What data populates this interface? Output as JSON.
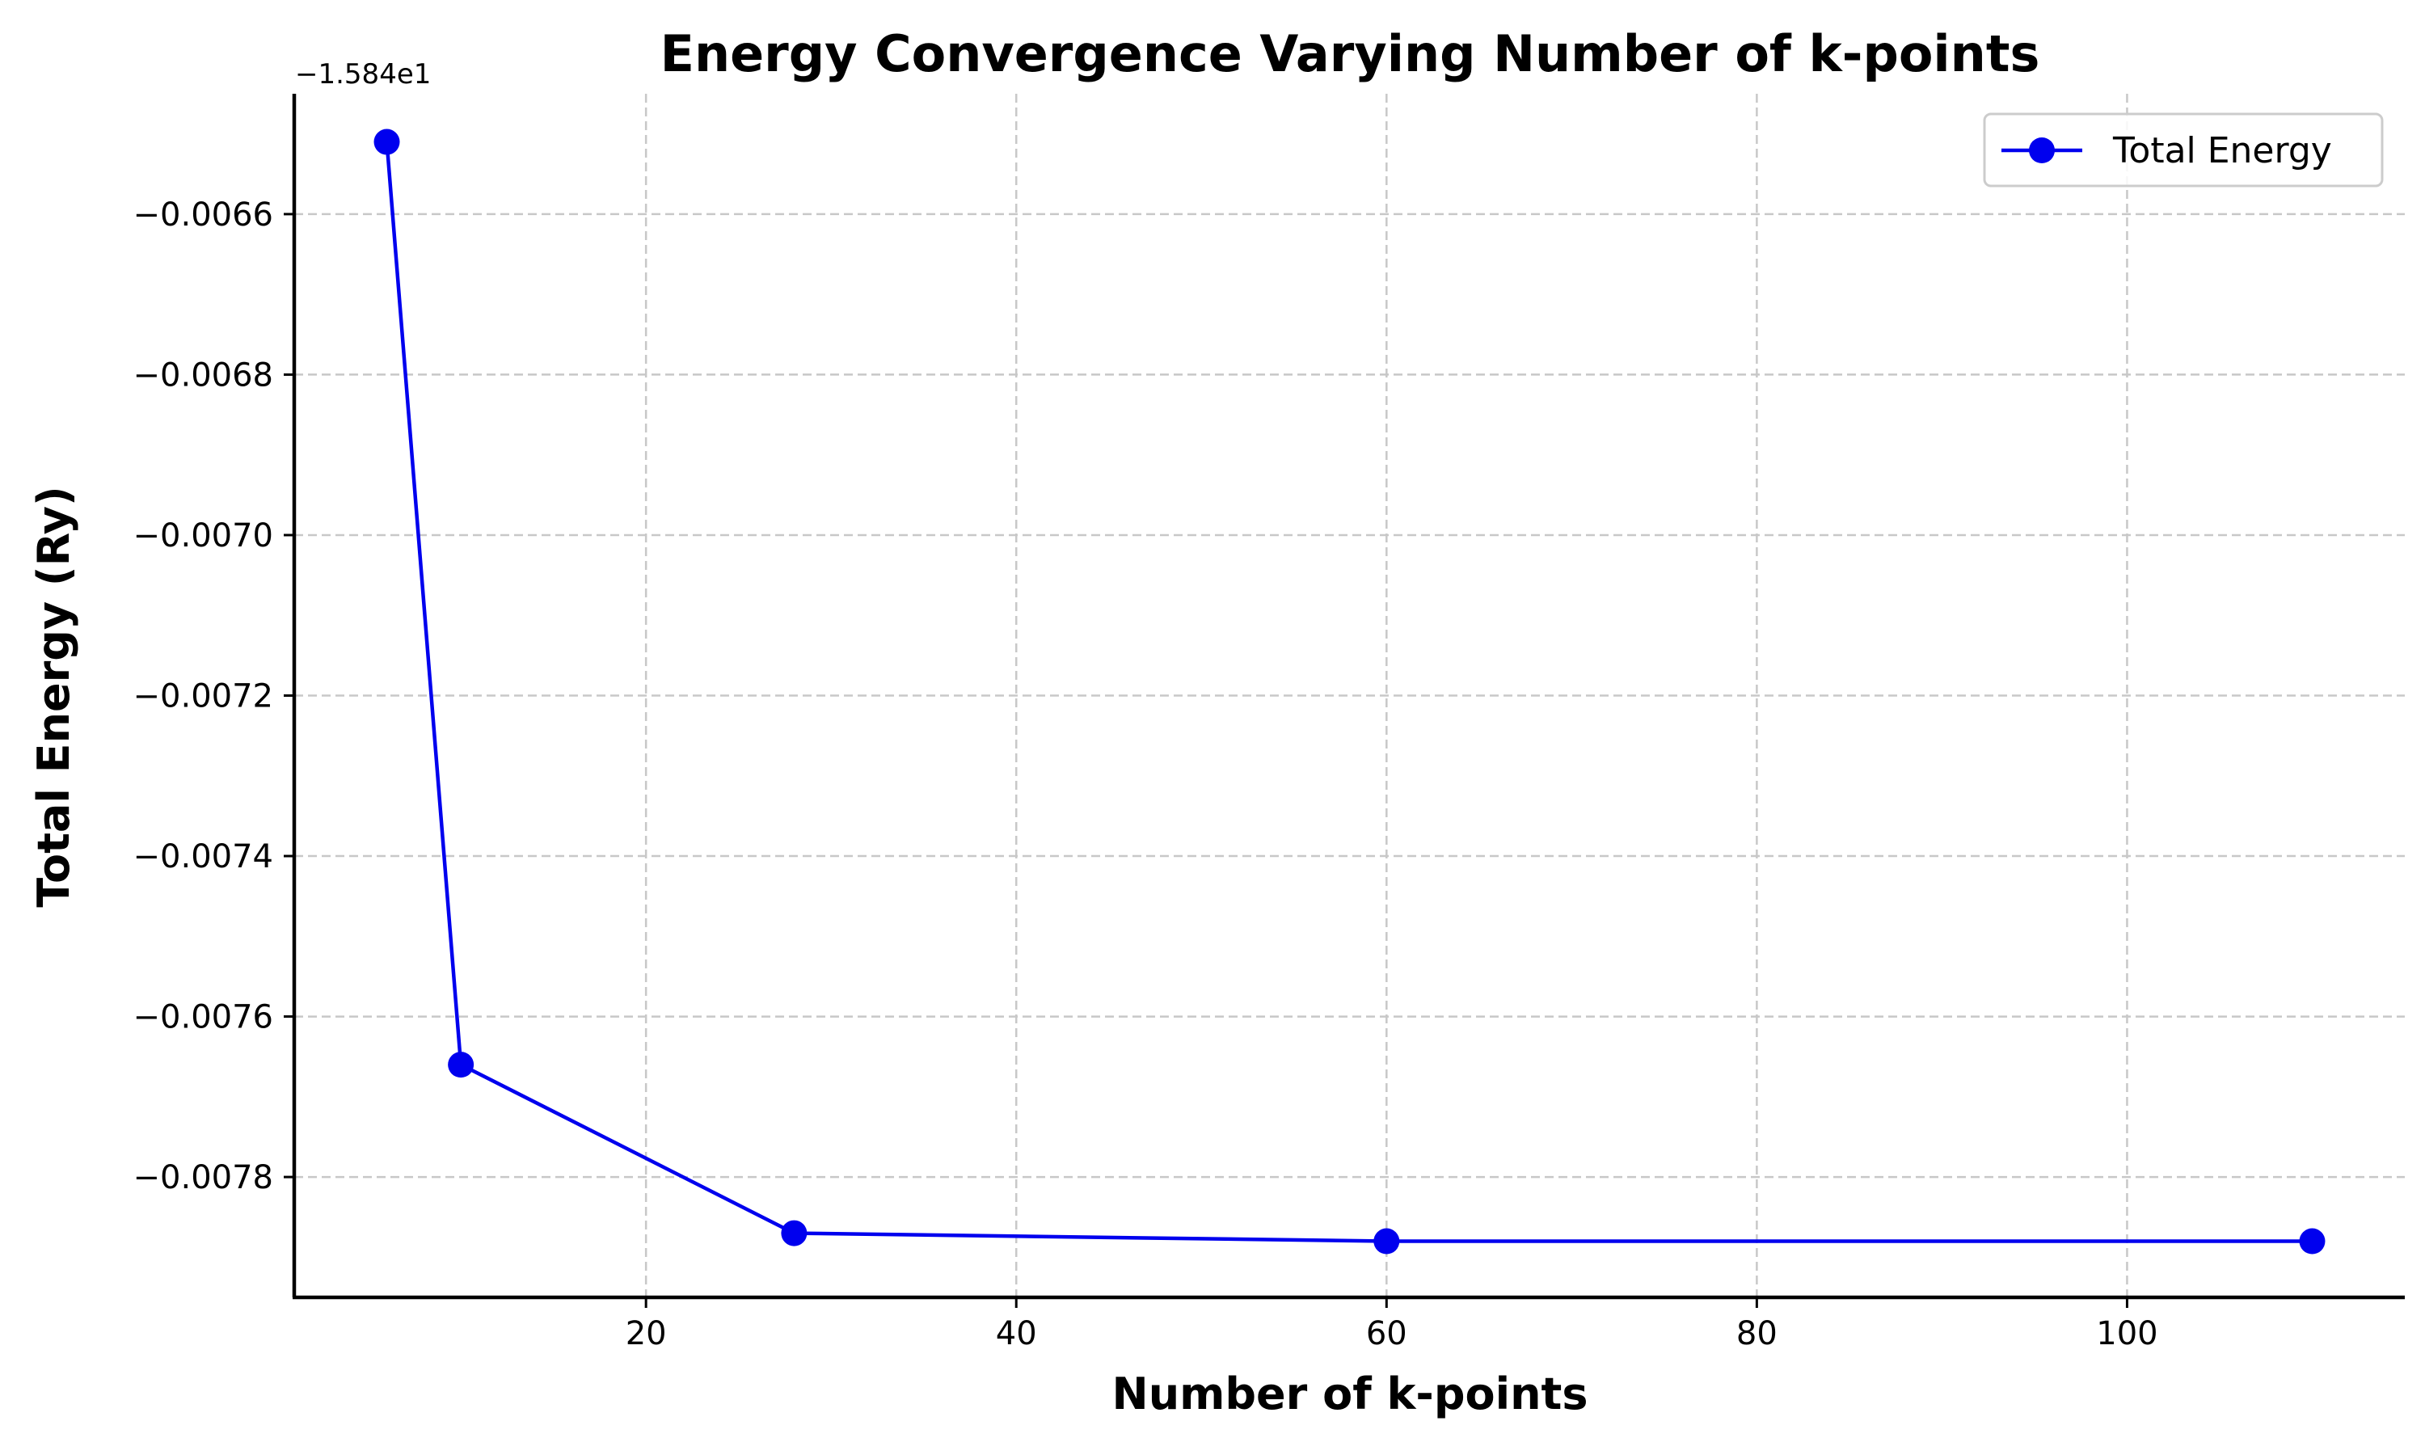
{
  "chart_data": {
    "type": "line",
    "title": "Energy Convergence Varying Number of k-points",
    "xlabel": "Number of k-points",
    "ylabel": "Total Energy (Ry)",
    "y_offset_label": "−1.584e1",
    "y_offset_value": -15.84,
    "xlim": [
      1,
      115
    ],
    "ylim": [
      -0.00795,
      -0.00645
    ],
    "x_ticks": [
      20,
      40,
      60,
      80,
      100
    ],
    "x_tick_labels": [
      "20",
      "40",
      "60",
      "80",
      "100"
    ],
    "y_ticks": [
      -0.0066,
      -0.0068,
      -0.007,
      -0.0072,
      -0.0074,
      -0.0076,
      -0.0078
    ],
    "y_tick_labels": [
      "−0.0066",
      "−0.0068",
      "−0.0070",
      "−0.0072",
      "−0.0074",
      "−0.0076",
      "−0.0078"
    ],
    "grid": true,
    "legend_position": "top-right",
    "series": [
      {
        "name": "Total Energy",
        "color": "#0000ee",
        "marker": "circle",
        "x": [
          6,
          10,
          28,
          60,
          110
        ],
        "y": [
          -0.00651,
          -0.00766,
          -0.00787,
          -0.00788,
          -0.00788
        ]
      }
    ]
  }
}
